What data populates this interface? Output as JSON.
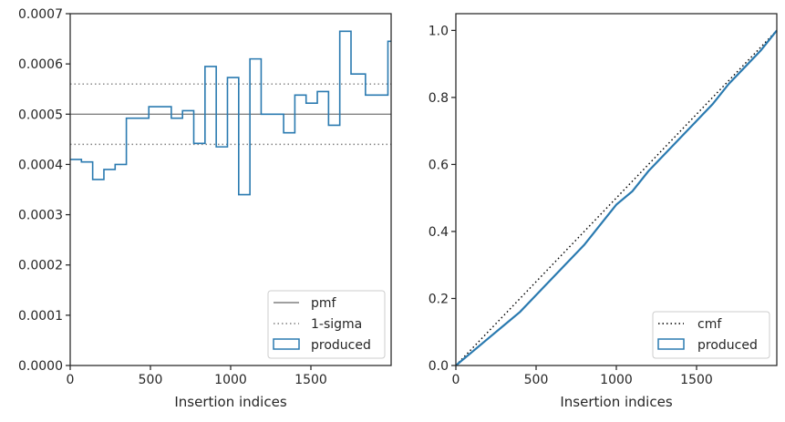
{
  "chart_data": [
    {
      "type": "histogram",
      "xlabel": "Insertion indices",
      "ylabel": "",
      "xlim": [
        0,
        2000
      ],
      "ylim": [
        0,
        0.0007
      ],
      "xticks": [
        "0",
        "500",
        "1000",
        "1500"
      ],
      "yticks": [
        "0.0000",
        "0.0001",
        "0.0002",
        "0.0003",
        "0.0004",
        "0.0005",
        "0.0006",
        "0.0007"
      ],
      "grid": false,
      "legend_position": "bottom-right",
      "colors": {
        "produced": "#2a7ab0",
        "pmf": "#808080",
        "sigma": "#808080"
      },
      "reference_lines": [
        {
          "name": "pmf",
          "style": "solid",
          "y": 0.0005
        },
        {
          "name": "1-sigma",
          "style": "dotted",
          "y": [
            0.00044,
            0.00056
          ]
        }
      ],
      "series": [
        {
          "name": "produced",
          "bin_edges": [
            0,
            70,
            140,
            210,
            280,
            350,
            490,
            630,
            700,
            770,
            840,
            910,
            980,
            1050,
            1120,
            1190,
            1330,
            1400,
            1470,
            1540,
            1610,
            1680,
            1750,
            1840,
            1980,
            2000
          ],
          "values": [
            0.00041,
            0.000405,
            0.00037,
            0.00039,
            0.0004,
            0.000492,
            0.000515,
            0.000492,
            0.000507,
            0.000442,
            0.000595,
            0.000435,
            0.000573,
            0.00034,
            0.00061,
            0.0005,
            0.000463,
            0.000538,
            0.000522,
            0.000545,
            0.000478,
            0.000665,
            0.00058,
            0.000538,
            0.000645
          ]
        }
      ]
    },
    {
      "type": "line",
      "xlabel": "Insertion indices",
      "ylabel": "",
      "xlim": [
        0,
        2000
      ],
      "ylim": [
        0,
        1.05
      ],
      "xticks": [
        "0",
        "500",
        "1000",
        "1500"
      ],
      "yticks": [
        "0.0",
        "0.2",
        "0.4",
        "0.6",
        "0.8",
        "1.0"
      ],
      "grid": false,
      "legend_position": "bottom-right",
      "colors": {
        "produced": "#2a7ab0",
        "cmf": "#000000"
      },
      "series": [
        {
          "name": "cmf",
          "style": "dotted",
          "x": [
            0,
            2000
          ],
          "y": [
            0,
            1.0
          ]
        },
        {
          "name": "produced",
          "x": [
            0,
            100,
            200,
            300,
            400,
            500,
            600,
            700,
            800,
            900,
            1000,
            1100,
            1200,
            1300,
            1400,
            1500,
            1600,
            1700,
            1800,
            1900,
            2000
          ],
          "y": [
            0,
            0.04,
            0.08,
            0.12,
            0.16,
            0.21,
            0.26,
            0.31,
            0.36,
            0.42,
            0.48,
            0.52,
            0.58,
            0.63,
            0.68,
            0.73,
            0.78,
            0.84,
            0.89,
            0.94,
            1.0
          ]
        }
      ]
    }
  ],
  "legend_left": {
    "pmf": "pmf",
    "sigma": "1-sigma",
    "produced": "produced"
  },
  "legend_right": {
    "cmf": "cmf",
    "produced": "produced"
  }
}
